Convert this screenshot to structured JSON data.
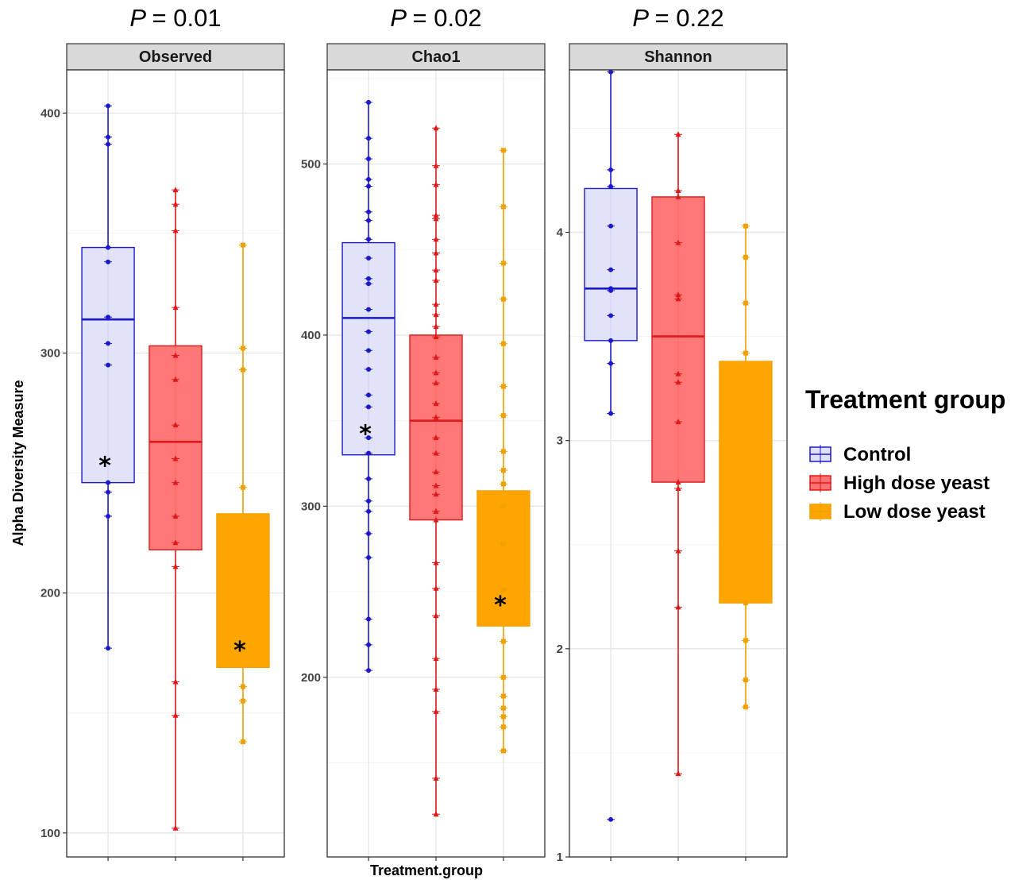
{
  "chart_data": {
    "type": "box",
    "xlabel": "Treatment.group",
    "ylabel": "Alpha Diversity Measure",
    "legend": {
      "title": "Treatment group",
      "placement": "right",
      "entries": [
        {
          "name": "Control",
          "color": "#1a1acc",
          "fill": "#e0e0f8"
        },
        {
          "name": "High dose yeast",
          "color": "#dd1a1a",
          "fill": "#ff7070"
        },
        {
          "name": "Low dose yeast",
          "color": "#f0a000",
          "fill": "#ffa500"
        }
      ]
    },
    "panels": [
      {
        "strip": "Observed",
        "p_label": "= 0.01",
        "p_symbol": "P",
        "ylim": [
          90,
          418
        ],
        "yticks": [
          100,
          200,
          300,
          400
        ],
        "grid": true,
        "groups": [
          {
            "name": "Control",
            "q1": 246,
            "median": 314,
            "q3": 344,
            "whisker_low": 177,
            "whisker_high": 403,
            "star_at": 255,
            "points": [
              403,
              390,
              387,
              344,
              338,
              315,
              304,
              295,
              246,
              242,
              232,
              177
            ]
          },
          {
            "name": "High dose yeast",
            "q1": 218,
            "median": 263,
            "q3": 303,
            "whisker_low": 102,
            "whisker_high": 368,
            "star_at": null,
            "points": [
              368,
              362,
              351,
              319,
              299,
              289,
              270,
              256,
              246,
              232,
              221,
              211,
              163,
              149,
              102
            ]
          },
          {
            "name": "Low dose yeast",
            "q1": 169,
            "median": 233,
            "q3": 233,
            "whisker_low": 138,
            "whisker_high": 345,
            "star_at": 178,
            "points": [
              345,
              302,
              293,
              244,
              161,
              155,
              138
            ]
          }
        ]
      },
      {
        "strip": "Chao1",
        "p_label": "= 0.02",
        "p_symbol": "P",
        "ylim": [
          95,
          555
        ],
        "yticks": [
          200,
          300,
          400,
          500
        ],
        "grid": true,
        "groups": [
          {
            "name": "Control",
            "q1": 330,
            "median": 410,
            "q3": 454,
            "whisker_low": 204,
            "whisker_high": 536,
            "star_at": 345,
            "points": [
              536,
              515,
              503,
              491,
              487,
              472,
              467,
              456,
              445,
              433,
              430,
              415,
              402,
              391,
              380,
              365,
              358,
              340,
              331,
              316,
              303,
              297,
              284,
              270,
              234,
              219,
              204
            ]
          },
          {
            "name": "High dose yeast",
            "q1": 292,
            "median": 350,
            "q3": 400,
            "whisker_low": 120,
            "whisker_high": 521,
            "star_at": null,
            "points": [
              521,
              499,
              488,
              470,
              468,
              456,
              448,
              438,
              432,
              418,
              412,
              405,
              399,
              387,
              378,
              372,
              360,
              352,
              340,
              331,
              320,
              312,
              307,
              297,
              292,
              267,
              252,
              236,
              211,
              193,
              180,
              141,
              120
            ]
          },
          {
            "name": "Low dose yeast",
            "q1": 230,
            "median": 309,
            "q3": 309,
            "whisker_low": 157,
            "whisker_high": 508,
            "star_at": 245,
            "points": [
              508,
              475,
              442,
              421,
              395,
              370,
              353,
              332,
              321,
              313,
              300,
              278,
              251,
              221,
              200,
              189,
              182,
              177,
              171,
              157
            ]
          }
        ]
      },
      {
        "strip": "Shannon",
        "p_label": "= 0.22",
        "p_symbol": "P",
        "ylim": [
          1.0,
          4.78
        ],
        "yticks": [
          1,
          2,
          3,
          4
        ],
        "grid": true,
        "groups": [
          {
            "name": "Control",
            "q1": 3.48,
            "median": 3.73,
            "q3": 4.21,
            "whisker_low": 3.13,
            "whisker_high": 4.77,
            "star_at": null,
            "points": [
              4.77,
              4.3,
              4.22,
              4.03,
              3.82,
              3.73,
              3.72,
              3.6,
              3.48,
              3.37,
              3.13,
              1.18
            ]
          },
          {
            "name": "High dose yeast",
            "q1": 2.8,
            "median": 3.5,
            "q3": 4.17,
            "whisker_low": 1.4,
            "whisker_high": 4.47,
            "star_at": null,
            "points": [
              4.47,
              4.2,
              4.17,
              3.95,
              3.7,
              3.68,
              3.32,
              3.28,
              3.09,
              2.8,
              2.77,
              2.47,
              2.2,
              1.4
            ]
          },
          {
            "name": "Low dose yeast",
            "q1": 2.22,
            "median": 3.38,
            "q3": 3.38,
            "whisker_low": 1.72,
            "whisker_high": 4.03,
            "star_at": null,
            "points": [
              4.03,
              3.88,
              3.66,
              3.42,
              2.22,
              2.04,
              1.85,
              1.72
            ]
          }
        ]
      }
    ]
  }
}
